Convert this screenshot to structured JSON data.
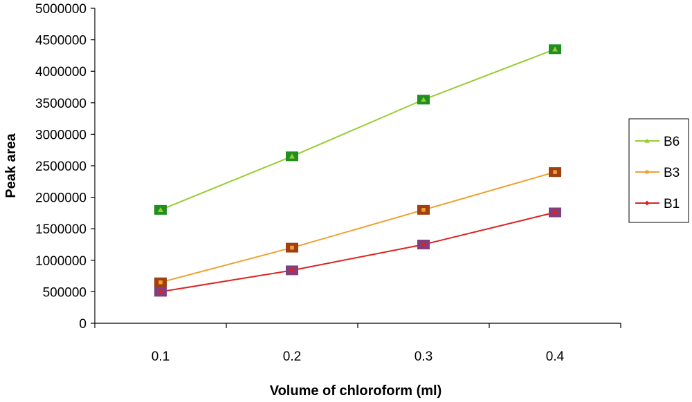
{
  "chart_data": {
    "type": "line",
    "title": "",
    "xlabel": "Volume of chloroform (ml)",
    "ylabel": "Peak area",
    "categories": [
      "0.1",
      "0.2",
      "0.3",
      "0.4"
    ],
    "ylim": [
      0,
      5000000
    ],
    "yticks": [
      "0",
      "500000",
      "1000000",
      "1500000",
      "2000000",
      "2500000",
      "3000000",
      "3500000",
      "4000000",
      "4500000",
      "5000000"
    ],
    "grid": false,
    "legend_position": "right",
    "series": [
      {
        "name": "B6",
        "values": [
          1800000,
          2650000,
          3550000,
          4350000
        ],
        "line_color": "#99cc33",
        "marker_fill": "#1f8f1f",
        "marker_inner": "#99cc33",
        "marker_shape": "triangle"
      },
      {
        "name": "B3",
        "values": [
          650000,
          1200000,
          1800000,
          2400000
        ],
        "line_color": "#f0a030",
        "marker_fill": "#a04010",
        "marker_inner": "#f0a030",
        "marker_shape": "square"
      },
      {
        "name": "B1",
        "values": [
          500000,
          840000,
          1250000,
          1760000
        ],
        "line_color": "#dd2222",
        "marker_fill": "#804080",
        "marker_inner": "#dd2222",
        "marker_shape": "diamond"
      }
    ]
  }
}
